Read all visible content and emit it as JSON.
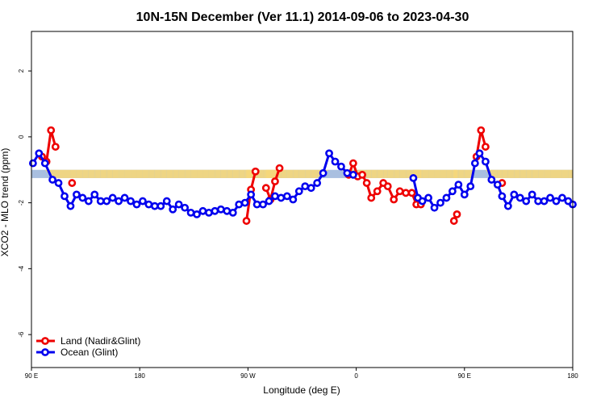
{
  "chart_data": {
    "type": "line",
    "title": "10N-15N December (Ver 11.1)   2014-09-06 to 2023-04-30",
    "xlabel": "Longitude (deg E)",
    "ylabel": "XCO2 - MLO trend (ppm)",
    "xlim": [
      90,
      450
    ],
    "ylim": [
      -7,
      3.2
    ],
    "x_ticks": [
      {
        "value": 90,
        "label": "90 E"
      },
      {
        "value": 162,
        "label": "180"
      },
      {
        "value": 234,
        "label": "90 W"
      },
      {
        "value": 306,
        "label": "0"
      },
      {
        "value": 378,
        "label": "90 E"
      },
      {
        "value": 450,
        "label": "180"
      }
    ],
    "y_ticks": [
      {
        "value": 2,
        "label": "2"
      },
      {
        "value": 0,
        "label": "0"
      },
      {
        "value": -2,
        "label": "-2"
      },
      {
        "value": -4,
        "label": "-4"
      },
      {
        "value": -6,
        "label": "-6"
      }
    ],
    "grid": false,
    "legend_position": "bottom-left",
    "reference_band": {
      "y_low": -1.25,
      "y_high": -1.0,
      "color": "#a9bfe0"
    },
    "anomaly_fill_color": "#f5d77a",
    "series": [
      {
        "name": "Land (Nadir&Glint)",
        "color": "#ee0000",
        "segments": [
          {
            "x": [
              97,
              100,
              103,
              106
            ],
            "y": [
              -0.6,
              -0.75,
              0.2,
              -0.3
            ]
          },
          {
            "x": [
              117
            ],
            "y": [
              -1.4
            ]
          },
          {
            "x": [
              233,
              236,
              239
            ],
            "y": [
              -2.55,
              -1.6,
              -1.05
            ]
          },
          {
            "x": [
              246,
              249,
              252,
              255
            ],
            "y": [
              -1.55,
              -1.9,
              -1.35,
              -0.95
            ]
          },
          {
            "x": [
              301,
              304,
              307,
              310,
              313,
              316,
              320,
              324,
              327,
              331,
              335,
              339,
              343,
              346,
              349
            ],
            "y": [
              -1.15,
              -0.8,
              -1.2,
              -1.15,
              -1.4,
              -1.85,
              -1.65,
              -1.4,
              -1.5,
              -1.9,
              -1.65,
              -1.7,
              -1.7,
              -2.05,
              -2.05
            ]
          },
          {
            "x": [
              371,
              373
            ],
            "y": [
              -2.55,
              -2.35
            ]
          },
          {
            "x": [
              386,
              389,
              392
            ],
            "y": [
              -0.6,
              0.2,
              -0.3
            ]
          },
          {
            "x": [
              403
            ],
            "y": [
              -1.4
            ]
          }
        ]
      },
      {
        "name": "Ocean (Glint)",
        "color": "#0000ee",
        "segments": [
          {
            "x": [
              91,
              95,
              99,
              104,
              108,
              112,
              116,
              120,
              124,
              128,
              132,
              136,
              140,
              144,
              148,
              152,
              156,
              160,
              164,
              168,
              172,
              176,
              180,
              184,
              188,
              192,
              196,
              200,
              204,
              208,
              212,
              216,
              220,
              224,
              228,
              232,
              236,
              240,
              244,
              248,
              252,
              256,
              260,
              264,
              268,
              272,
              276,
              280,
              284,
              288,
              292,
              296,
              300,
              304
            ],
            "y": [
              -0.8,
              -0.5,
              -0.8,
              -1.3,
              -1.4,
              -1.8,
              -2.1,
              -1.75,
              -1.85,
              -1.95,
              -1.75,
              -1.95,
              -1.95,
              -1.85,
              -1.95,
              -1.85,
              -1.95,
              -2.05,
              -1.95,
              -2.05,
              -2.1,
              -2.1,
              -1.95,
              -2.2,
              -2.05,
              -2.15,
              -2.3,
              -2.35,
              -2.25,
              -2.3,
              -2.25,
              -2.2,
              -2.25,
              -2.3,
              -2.05,
              -2.0,
              -1.75,
              -2.05,
              -2.05,
              -1.95,
              -1.8,
              -1.85,
              -1.8,
              -1.9,
              -1.65,
              -1.5,
              -1.55,
              -1.4,
              -1.1,
              -0.5,
              -0.75,
              -0.9,
              -1.1,
              -1.15
            ]
          },
          {
            "x": [
              344,
              347,
              350,
              354,
              358,
              362,
              366,
              370,
              374,
              378,
              382,
              385,
              388,
              392,
              396,
              400,
              403,
              407,
              411,
              415,
              419,
              423,
              427,
              431,
              435,
              439,
              443,
              447,
              450
            ],
            "y": [
              -1.25,
              -1.85,
              -1.95,
              -1.85,
              -2.15,
              -2.0,
              -1.85,
              -1.65,
              -1.45,
              -1.75,
              -1.5,
              -0.8,
              -0.5,
              -0.75,
              -1.3,
              -1.45,
              -1.8,
              -2.1,
              -1.75,
              -1.85,
              -1.95,
              -1.75,
              -1.95,
              -1.95,
              -1.85,
              -1.95,
              -1.85,
              -1.95,
              -2.05
            ]
          }
        ]
      }
    ]
  }
}
